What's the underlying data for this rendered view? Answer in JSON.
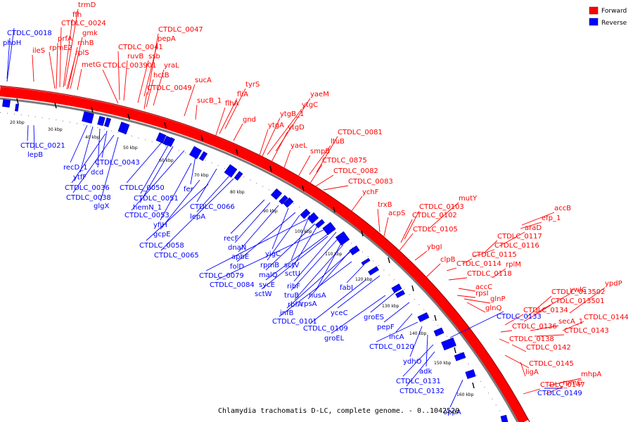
{
  "caption": "Chlamydia trachomatis D-LC, complete genome. - 0..1042520",
  "legend": {
    "forward": {
      "label": "Forward",
      "color": "#ff0000"
    },
    "reverse": {
      "label": "Reverse",
      "color": "#0000ff"
    }
  },
  "kbp_ticks": [
    "20 kbp",
    "30 kbp",
    "40 kbp",
    "50 kbp",
    "60 kbp",
    "70 kbp",
    "80 kbp",
    "90 kbp",
    "100 kbp",
    "110 kbp",
    "120 kbp",
    "130 kbp",
    "140 kbp",
    "150 kbp",
    "160 kbp"
  ],
  "forward_labels": [
    "trmD",
    "ffh",
    "CTDLC_0024",
    "prfA",
    "gmk",
    "rpmE2",
    "rnhB",
    "rplS",
    "metG",
    "ileS",
    "CTDLC_0047",
    "pepA",
    "CTDLC_0041",
    "ruvB",
    "ssb",
    "CTDLC_003901",
    "yraL",
    "hctB",
    "CTDLC_0049",
    "sucA",
    "sucB_1",
    "tyrS",
    "fliA",
    "flhA",
    "gnd",
    "yaeM",
    "ytgC",
    "ytgB_1",
    "ytgA",
    "ytgD",
    "yaeL",
    "CTDLC_0081",
    "ltuB",
    "smpB",
    "CTDLC_0875",
    "CTDLC_0082",
    "CTDLC_0083",
    "ychF",
    "trxB",
    "acpS",
    "mutY",
    "CTDLC_0103",
    "CTDLC_0102",
    "CTDLC_0105",
    "ybgI",
    "clpB",
    "accB",
    "efp_1",
    "araD",
    "CTDLC_0117",
    "CTDLC_0116",
    "CTDLC_0115",
    "CTDLC_0114",
    "rplM",
    "CTDLC_0118",
    "accC",
    "rpsI",
    "glnP",
    "glnQ",
    "ywlC",
    "ypdP",
    "CTDLC_013502",
    "CTDLC_013501",
    "CTDLC_0134",
    "CTDLC_0144",
    "secA_1",
    "CTDLC_0136",
    "CTDLC_0143",
    "CTDLC_0138",
    "CTDLC_0142",
    "CTDLC_0145",
    "ligA",
    "mhpA",
    "CTDLC_0147",
    "rpmG"
  ],
  "reverse_labels": [
    "CTDLC_0018",
    "phoH",
    "CTDLC_0021",
    "lepB",
    "recD_1",
    "ytfF",
    "dcd",
    "CTDLC_0043",
    "CTDLC_0036",
    "CTDLC_0038",
    "glgX",
    "CTDLC_0050",
    "CTDLC_0051",
    "hemN_1",
    "CTDLC_0053",
    "fer",
    "yfiH",
    "CTDLC_0066",
    "gcpE",
    "lepA",
    "CTDLC_0058",
    "CTDLC_0065",
    "recF",
    "dnaN",
    "apbE",
    "yigC",
    "folD",
    "rpmB",
    "sctV",
    "CTDLC_0079",
    "malQ",
    "sctU",
    "CTDLC_0084",
    "sycE",
    "ribF",
    "sctW",
    "truB",
    "nusA",
    "rbfA",
    "rpsA",
    "infB",
    "fabI",
    "CTDLC_0101",
    "yceC",
    "groES",
    "CTDLC_0109",
    "groEL",
    "pepF",
    "incA",
    "CTDLC_0120",
    "ydhO",
    "adk",
    "CTDLC_0133",
    "CTDLC_0131",
    "CTDLC_0132",
    "CTDLC_0149",
    "oppA"
  ]
}
